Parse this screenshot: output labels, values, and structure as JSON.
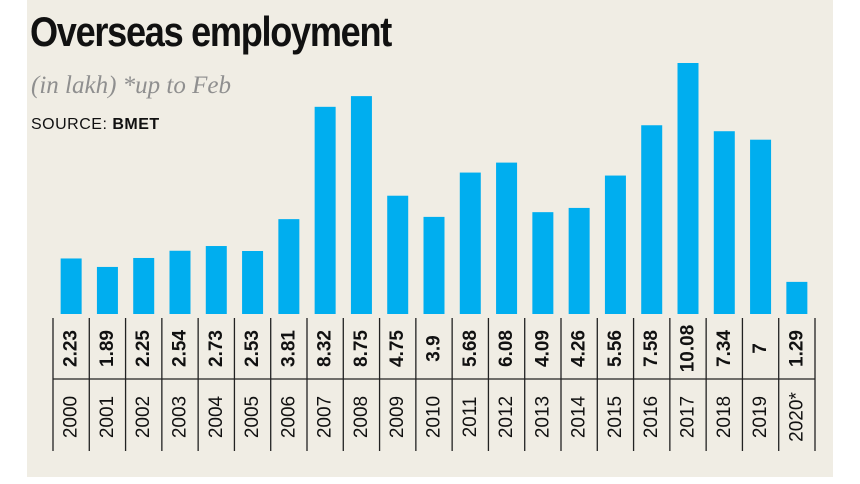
{
  "title": "Overseas employment",
  "subtitle": "(in lakh) *up to Feb",
  "source": {
    "label": "SOURCE:",
    "name": "BMET"
  },
  "colors": {
    "bar": "#00aeef",
    "background": "#f0ede4",
    "text": "#111111"
  },
  "chart_data": {
    "type": "bar",
    "categories": [
      "2000",
      "2001",
      "2002",
      "2003",
      "2004",
      "2005",
      "2006",
      "2007",
      "2008",
      "2009",
      "2010",
      "2011",
      "2012",
      "2013",
      "2014",
      "2015",
      "2016",
      "2017",
      "2018",
      "2019",
      "2020*"
    ],
    "value_labels": [
      "2.23",
      "1.89",
      "2.25",
      "2.54",
      "2.73",
      "2.53",
      "3.81",
      "8.32",
      "8.75",
      "4.75",
      "3.9",
      "5.68",
      "6.08",
      "4.09",
      "4.26",
      "5.56",
      "7.58",
      "10.08",
      "7.34",
      "7",
      "1.29"
    ],
    "values": [
      2.23,
      1.89,
      2.25,
      2.54,
      2.73,
      2.53,
      3.81,
      8.32,
      8.75,
      4.75,
      3.9,
      5.68,
      6.08,
      4.09,
      4.26,
      5.56,
      7.58,
      10.08,
      7.34,
      7,
      1.29
    ],
    "title": "Overseas employment",
    "subtitle": "(in lakh) *up to Feb",
    "ylim": [
      0,
      10.08
    ],
    "grid": false,
    "legend": "none"
  }
}
